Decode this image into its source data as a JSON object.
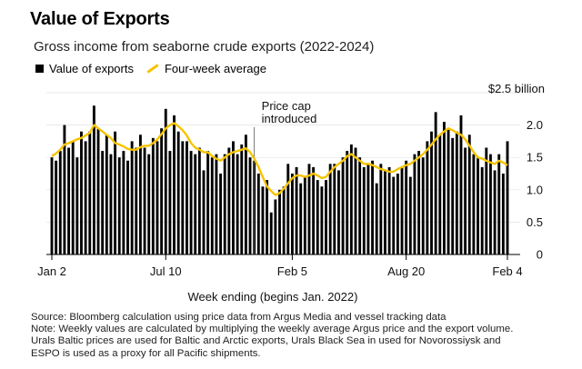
{
  "header": {
    "title": "Value of Exports",
    "subtitle": "Gross income from seaborne crude exports (2022-2024)"
  },
  "legend": {
    "bars_label": "Value of exports",
    "line_label": "Four-week average"
  },
  "annotation": {
    "line1": "Price cap",
    "line2": "introduced"
  },
  "colors": {
    "bars": "#000000",
    "average_line": "#f5c400",
    "marker_line": "#555555"
  },
  "chart_data": {
    "type": "bar",
    "title": "Value of Exports",
    "subtitle": "Gross income from seaborne crude exports (2022-2024)",
    "xlabel": "Week ending (begins Jan. 2022)",
    "ylabel": "$2.5 billion",
    "ylim": [
      0,
      2.5
    ],
    "y_ticks": [
      0,
      0.5,
      1.0,
      1.5,
      2.0
    ],
    "y_tick_labels": [
      "0",
      "0.5",
      "1.0",
      "1.5",
      "2.0"
    ],
    "y_top_label": "$2.5 billion",
    "x_tick_labels": [
      {
        "label": "Jan 2",
        "index": 0
      },
      {
        "label": "Jul 10",
        "index": 27
      },
      {
        "label": "Feb 5",
        "index": 57
      },
      {
        "label": "Aug 20",
        "index": 84
      },
      {
        "label": "Feb 4",
        "index": 108
      }
    ],
    "event_marker": {
      "index": 48,
      "label": "Price cap introduced"
    },
    "legend_position": "top-left",
    "series": [
      {
        "name": "Value of exports",
        "kind": "bar",
        "values": [
          1.5,
          1.45,
          1.6,
          2.0,
          1.65,
          1.75,
          1.5,
          1.9,
          1.75,
          1.9,
          2.3,
          1.95,
          1.6,
          1.85,
          1.55,
          1.9,
          1.5,
          1.6,
          1.45,
          1.75,
          1.65,
          1.85,
          1.65,
          1.55,
          1.8,
          1.75,
          1.95,
          2.25,
          1.6,
          2.15,
          1.9,
          1.75,
          1.75,
          1.6,
          1.55,
          1.65,
          1.3,
          1.6,
          1.5,
          1.55,
          1.25,
          1.55,
          1.65,
          1.75,
          1.55,
          1.7,
          1.85,
          1.5,
          1.45,
          1.25,
          1.05,
          1.15,
          0.65,
          0.85,
          1.0,
          1.05,
          1.4,
          1.25,
          1.35,
          1.1,
          1.2,
          1.4,
          1.35,
          1.15,
          1.05,
          1.15,
          1.4,
          1.4,
          1.3,
          1.5,
          1.6,
          1.7,
          1.65,
          1.5,
          1.35,
          1.4,
          1.45,
          1.1,
          1.4,
          1.3,
          1.35,
          1.2,
          1.25,
          1.35,
          1.45,
          1.2,
          1.55,
          1.6,
          1.5,
          1.75,
          1.9,
          2.2,
          1.85,
          2.05,
          1.95,
          1.8,
          1.9,
          2.15,
          1.65,
          1.85,
          1.55,
          1.5,
          1.35,
          1.65,
          1.55,
          1.3,
          1.55,
          1.25,
          1.75
        ]
      },
      {
        "name": "Four-week average",
        "kind": "line",
        "values": [
          1.52,
          1.56,
          1.62,
          1.7,
          1.72,
          1.75,
          1.78,
          1.8,
          1.84,
          1.88,
          2.0,
          1.95,
          1.9,
          1.85,
          1.8,
          1.72,
          1.7,
          1.67,
          1.63,
          1.62,
          1.62,
          1.66,
          1.68,
          1.68,
          1.72,
          1.78,
          1.86,
          1.95,
          2.0,
          2.03,
          1.98,
          1.92,
          1.84,
          1.72,
          1.65,
          1.62,
          1.58,
          1.58,
          1.52,
          1.48,
          1.45,
          1.5,
          1.55,
          1.58,
          1.6,
          1.62,
          1.64,
          1.58,
          1.48,
          1.35,
          1.2,
          1.05,
          0.98,
          0.92,
          0.95,
          1.02,
          1.1,
          1.18,
          1.22,
          1.22,
          1.2,
          1.22,
          1.25,
          1.22,
          1.18,
          1.2,
          1.28,
          1.35,
          1.4,
          1.45,
          1.52,
          1.55,
          1.5,
          1.45,
          1.4,
          1.4,
          1.38,
          1.35,
          1.32,
          1.3,
          1.28,
          1.28,
          1.32,
          1.35,
          1.38,
          1.4,
          1.45,
          1.5,
          1.55,
          1.62,
          1.7,
          1.78,
          1.85,
          1.9,
          1.95,
          1.92,
          1.88,
          1.85,
          1.78,
          1.68,
          1.58,
          1.5,
          1.48,
          1.45,
          1.42,
          1.4,
          1.45,
          1.42,
          1.38
        ]
      }
    ]
  },
  "notes": {
    "source": "Source: Bloomberg calculation using price data from Argus Media and vessel tracking data",
    "note1": "Note: Weekly values are calculated by multiplying the weekly average Argus price and the export volume.",
    "note2": "Urals Baltic prices are used for Baltic and Arctic exports, Urals Black Sea in used for Novorossiysk and",
    "note3": "ESPO is used as a proxy for all Pacific shipments."
  }
}
